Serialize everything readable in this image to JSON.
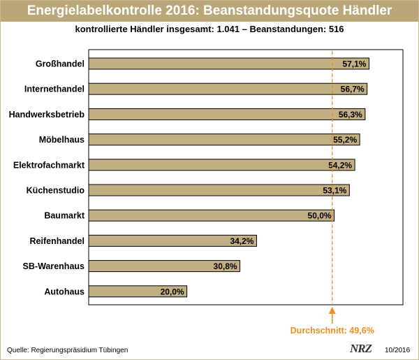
{
  "header": {
    "title": "Energielabelkontrolle 2016: Beanstandungsquote Händler",
    "subtitle": "kontrollierte Händler insgesamt: 1.041 – Beanstandungen: 516"
  },
  "footer": {
    "source": "Quelle: Regierungspräsidium Tübingen",
    "brand": "NRZ",
    "date": "10/2016"
  },
  "chart_data": {
    "type": "bar",
    "orientation": "horizontal",
    "categories": [
      "Großhandel",
      "Internethandel",
      "Handwerksbetrieb",
      "Möbelhaus",
      "Elektrofachmarkt",
      "Küchenstudio",
      "Baumarkt",
      "Reifenhandel",
      "SB-Warenhaus",
      "Autohaus"
    ],
    "values": [
      57.1,
      56.7,
      56.3,
      55.2,
      54.2,
      53.1,
      50.0,
      34.2,
      30.8,
      20.0
    ],
    "value_labels": [
      "57,1%",
      "56,7%",
      "56,3%",
      "55,2%",
      "54,2%",
      "53,1%",
      "50,0%",
      "34,2%",
      "30,8%",
      "20,0%"
    ],
    "xlim": [
      0,
      64
    ],
    "reference_line": {
      "value": 49.6,
      "label": "Durchschnitt: 49,6%",
      "color": "#f28c1e"
    },
    "bar_color": "#c2af84",
    "grid": false
  }
}
